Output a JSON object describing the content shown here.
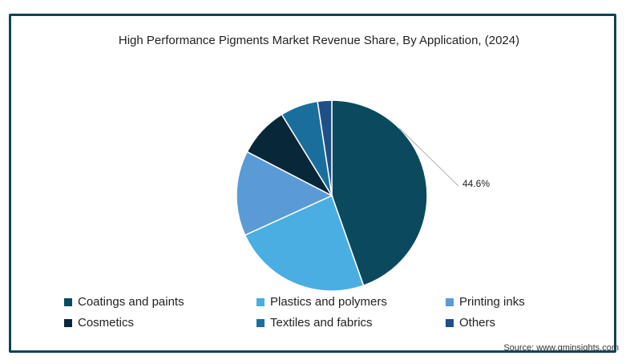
{
  "chart_data": {
    "type": "pie",
    "title": "High Performance Pigments Market Revenue Share, By Application, (2024)",
    "series": [
      {
        "name": "Coatings and paints",
        "value": 44.6,
        "color": "#0b4a5e",
        "label": "44.6%"
      },
      {
        "name": "Plastics and polymers",
        "value": 23.6,
        "color": "#4aaee3",
        "label": ""
      },
      {
        "name": "Printing inks",
        "value": 14.4,
        "color": "#5b9bd5",
        "label": ""
      },
      {
        "name": "Cosmetics",
        "value": 8.6,
        "color": "#08283a",
        "label": ""
      },
      {
        "name": "Textiles and fabrics",
        "value": 6.4,
        "color": "#1a6e9c",
        "label": ""
      },
      {
        "name": "Others",
        "value": 2.4,
        "color": "#1f4f86",
        "label": ""
      }
    ],
    "legend_position": "bottom"
  },
  "source": "Source: www.gminsights.com"
}
